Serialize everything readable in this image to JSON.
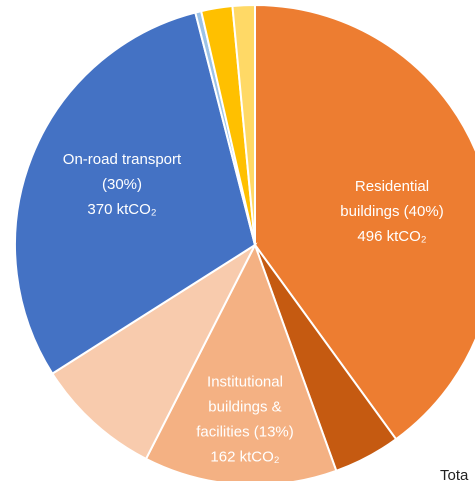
{
  "chart_data": {
    "type": "pie",
    "values": [
      40,
      4.5,
      13,
      8.5,
      30,
      0.4,
      2.1,
      1.5
    ],
    "colors": [
      "#ED7D31",
      "#C55A11",
      "#F4B183",
      "#F8CBAD",
      "#4472C4",
      "#9DC3E6",
      "#FFC000",
      "#FFD966"
    ],
    "slice_labels": [
      [
        "Residential",
        "buildings (40%)",
        "496 ktCO₂"
      ],
      null,
      [
        "Institutional",
        "buildings &",
        "facilities (13%)",
        "162 ktCO₂"
      ],
      null,
      [
        "On-road transport",
        "(30%)",
        "370 ktCO₂"
      ],
      null,
      null,
      null
    ],
    "annotation": "Tota"
  }
}
